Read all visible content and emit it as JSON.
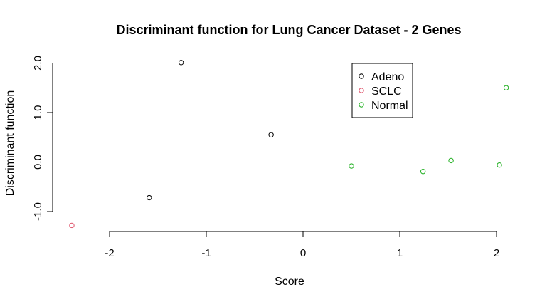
{
  "chart_data": {
    "type": "scatter",
    "title": "Discriminant function for Lung Cancer Dataset - 2 Genes",
    "xlabel": "Score",
    "ylabel": "Discriminant function",
    "xlim": [
      -2.4,
      2.2
    ],
    "ylim": [
      -1.3,
      2.1
    ],
    "x_ticks": [
      -2,
      -1,
      0,
      1,
      2
    ],
    "x_tick_labels": [
      "-2",
      "-1",
      "0",
      "1",
      "2"
    ],
    "y_ticks": [
      -1.0,
      0.0,
      1.0,
      2.0
    ],
    "y_tick_labels": [
      "-1.0",
      "0.0",
      "1.0",
      "2.0"
    ],
    "grid": false,
    "legend_position": "top-right",
    "series": [
      {
        "name": "Adeno",
        "color": "#000000",
        "points": [
          {
            "x": -1.26,
            "y": 2.01
          },
          {
            "x": -0.33,
            "y": 0.55
          },
          {
            "x": -1.59,
            "y": -0.72
          }
        ]
      },
      {
        "name": "SCLC",
        "color": "#DF536B",
        "points": [
          {
            "x": -2.39,
            "y": -1.28
          }
        ]
      },
      {
        "name": "Normal",
        "color": "#22B022",
        "points": [
          {
            "x": 0.5,
            "y": -0.08
          },
          {
            "x": 1.24,
            "y": -0.19
          },
          {
            "x": 1.53,
            "y": 0.03
          },
          {
            "x": 2.03,
            "y": -0.06
          },
          {
            "x": 2.1,
            "y": 1.5
          }
        ]
      }
    ]
  }
}
